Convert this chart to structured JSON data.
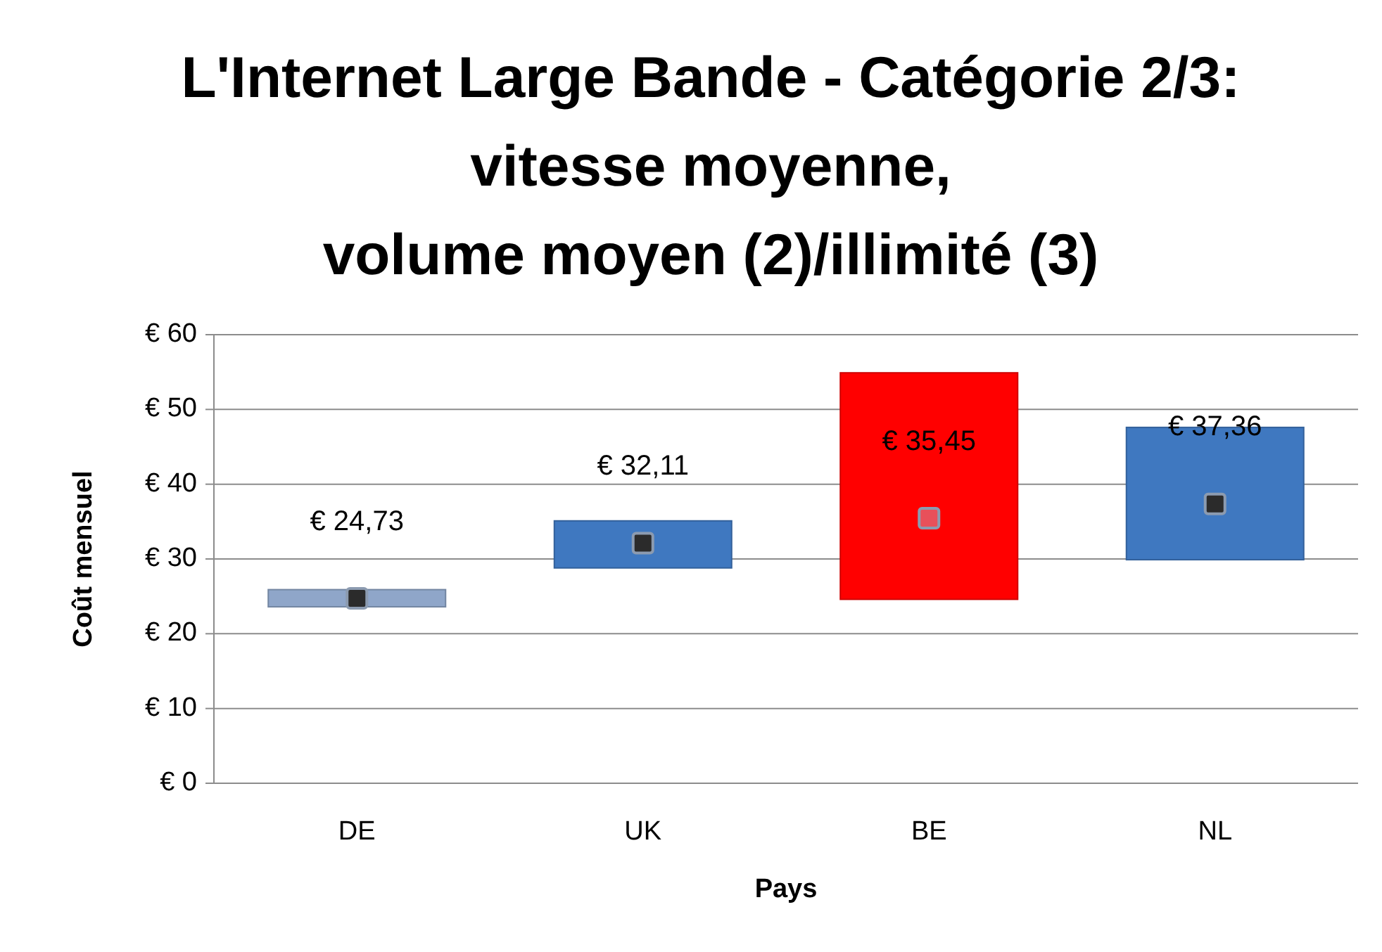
{
  "chart_data": {
    "type": "bar",
    "title": "L'Internet Large Bande - Catégorie 2/3:\nvitesse moyenne,\nvolume moyen (2)/illimité (3)",
    "xlabel": "Pays",
    "ylabel": "Coût mensuel",
    "categories": [
      "DE",
      "UK",
      "BE",
      "NL"
    ],
    "series": [
      {
        "base": [
          23.6,
          28.8,
          24.6,
          29.9
        ],
        "values": [
          2.3,
          6.3,
          30.3,
          17.7
        ],
        "colors": [
          "#8fa6c9",
          "#3f78c0",
          "#ff0000",
          "#3f78c0"
        ]
      },
      {
        "type": "scatter",
        "marker": "square",
        "values": [
          24.73,
          32.11,
          35.45,
          37.36
        ],
        "colors": [
          "#2b2b2b",
          "#2b2b2b",
          "#e8505a",
          "#2b2b2b"
        ],
        "value_labels": [
          "€ 24,73",
          "€ 32,11",
          "€ 35,45",
          "€ 37,36"
        ]
      }
    ],
    "ylim": [
      0,
      60
    ],
    "yticks": [
      {
        "value": 0,
        "label": "€ 0"
      },
      {
        "value": 10,
        "label": "€ 10"
      },
      {
        "value": 20,
        "label": "€ 20"
      },
      {
        "value": 30,
        "label": "€ 30"
      },
      {
        "value": 40,
        "label": "€ 40"
      },
      {
        "value": 50,
        "label": "€ 50"
      },
      {
        "value": 60,
        "label": "€ 60"
      }
    ],
    "grid": "y"
  }
}
